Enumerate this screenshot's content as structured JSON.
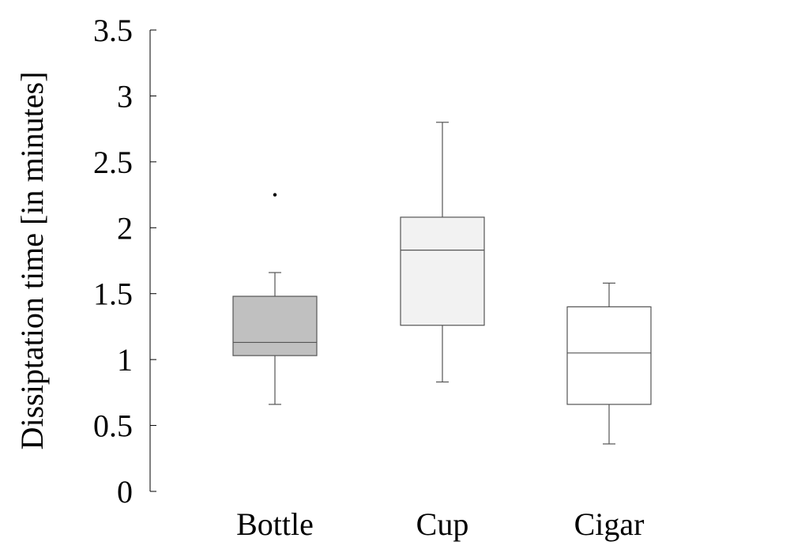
{
  "chart_data": {
    "type": "box",
    "title": "",
    "xlabel": "",
    "ylabel": "Dissiptation time [in minutes]",
    "ylim": [
      0,
      3.5
    ],
    "yticks": [
      0,
      0.5,
      1,
      1.5,
      2,
      2.5,
      3,
      3.5
    ],
    "ytick_labels": [
      "0",
      "0.5",
      "1",
      "1.5",
      "2",
      "2.5",
      "3",
      "3.5"
    ],
    "grid": false,
    "legend": "none",
    "categories": [
      "Bottle",
      "Cup",
      "Cigar"
    ],
    "boxes": [
      {
        "category": "Bottle",
        "whisker_low": 0.66,
        "q1": 1.03,
        "median": 1.13,
        "q3": 1.48,
        "whisker_high": 1.66,
        "outliers": [
          2.25
        ],
        "fill": "#c0c0c0"
      },
      {
        "category": "Cup",
        "whisker_low": 0.83,
        "q1": 1.26,
        "median": 1.83,
        "q3": 2.08,
        "whisker_high": 2.8,
        "outliers": [],
        "fill": "#f2f2f2"
      },
      {
        "category": "Cigar",
        "whisker_low": 0.36,
        "q1": 0.66,
        "median": 1.05,
        "q3": 1.4,
        "whisker_high": 1.58,
        "outliers": [],
        "fill": "#ffffff"
      }
    ]
  }
}
